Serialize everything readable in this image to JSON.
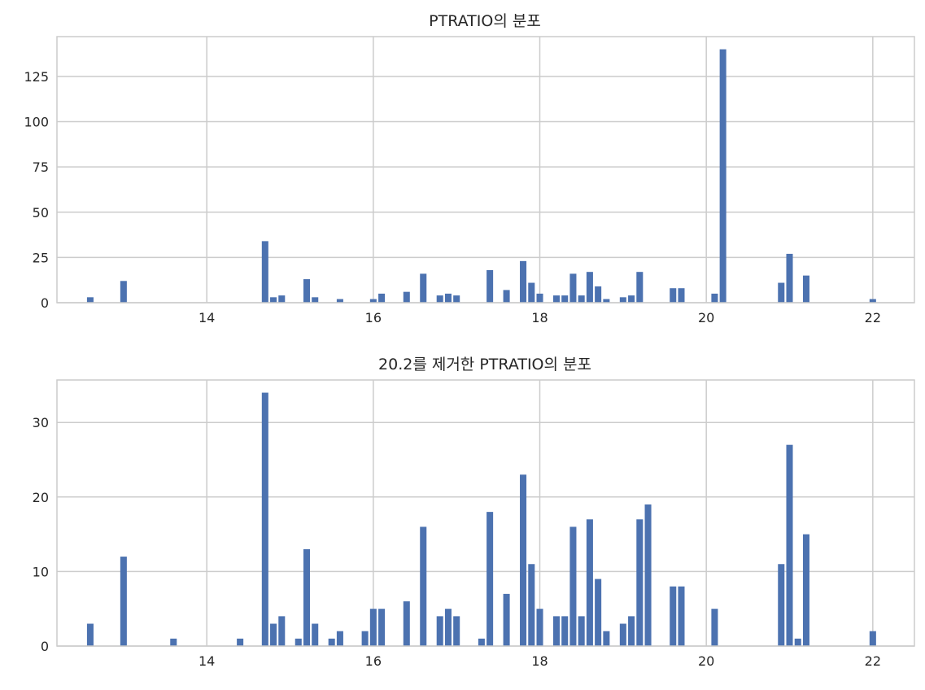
{
  "chart_data": [
    {
      "type": "bar",
      "title": "PTRATIO의 분포",
      "xlabel": "",
      "ylabel": "",
      "xlim": [
        12.2,
        22.5
      ],
      "ylim": [
        0,
        147
      ],
      "xticks": [
        14,
        16,
        18,
        20,
        22
      ],
      "yticks": [
        0,
        25,
        50,
        75,
        100,
        125
      ],
      "grid": true,
      "color": "#4c72b0",
      "x": [
        12.6,
        13.0,
        14.7,
        14.8,
        14.9,
        15.2,
        15.3,
        15.6,
        16.0,
        16.1,
        16.4,
        16.6,
        16.8,
        16.9,
        17.0,
        17.4,
        17.6,
        17.8,
        17.9,
        18.0,
        18.2,
        18.3,
        18.4,
        18.5,
        18.6,
        18.7,
        18.8,
        19.0,
        19.1,
        19.2,
        19.6,
        19.7,
        20.1,
        20.2,
        20.9,
        21.0,
        21.2,
        22.0
      ],
      "values": [
        3,
        12,
        34,
        3,
        4,
        13,
        3,
        2,
        2,
        5,
        6,
        16,
        4,
        5,
        4,
        18,
        7,
        23,
        11,
        5,
        4,
        4,
        16,
        4,
        17,
        9,
        2,
        3,
        4,
        17,
        8,
        8,
        5,
        140,
        11,
        27,
        15,
        2
      ]
    },
    {
      "type": "bar",
      "title": "20.2를 제거한 PTRATIO의 분포",
      "xlabel": "",
      "ylabel": "",
      "xlim": [
        12.2,
        22.5
      ],
      "ylim": [
        0,
        35.7
      ],
      "xticks": [
        14,
        16,
        18,
        20,
        22
      ],
      "yticks": [
        0,
        10,
        20,
        30
      ],
      "grid": true,
      "color": "#4c72b0",
      "x": [
        12.6,
        13.0,
        13.6,
        14.4,
        14.7,
        14.8,
        14.9,
        15.1,
        15.2,
        15.3,
        15.5,
        15.6,
        15.9,
        16.0,
        16.1,
        16.4,
        16.6,
        16.8,
        16.9,
        17.0,
        17.3,
        17.4,
        17.6,
        17.8,
        17.9,
        18.0,
        18.2,
        18.3,
        18.4,
        18.5,
        18.6,
        18.7,
        18.8,
        19.0,
        19.1,
        19.2,
        19.3,
        19.6,
        19.7,
        20.1,
        20.9,
        21.0,
        21.1,
        21.2,
        22.0
      ],
      "values": [
        3,
        12,
        1,
        1,
        34,
        3,
        4,
        1,
        13,
        3,
        1,
        2,
        2,
        5,
        5,
        6,
        16,
        4,
        5,
        4,
        1,
        18,
        7,
        23,
        11,
        5,
        4,
        4,
        16,
        4,
        17,
        9,
        2,
        3,
        4,
        17,
        19,
        8,
        8,
        5,
        11,
        27,
        1,
        15,
        2
      ]
    }
  ]
}
